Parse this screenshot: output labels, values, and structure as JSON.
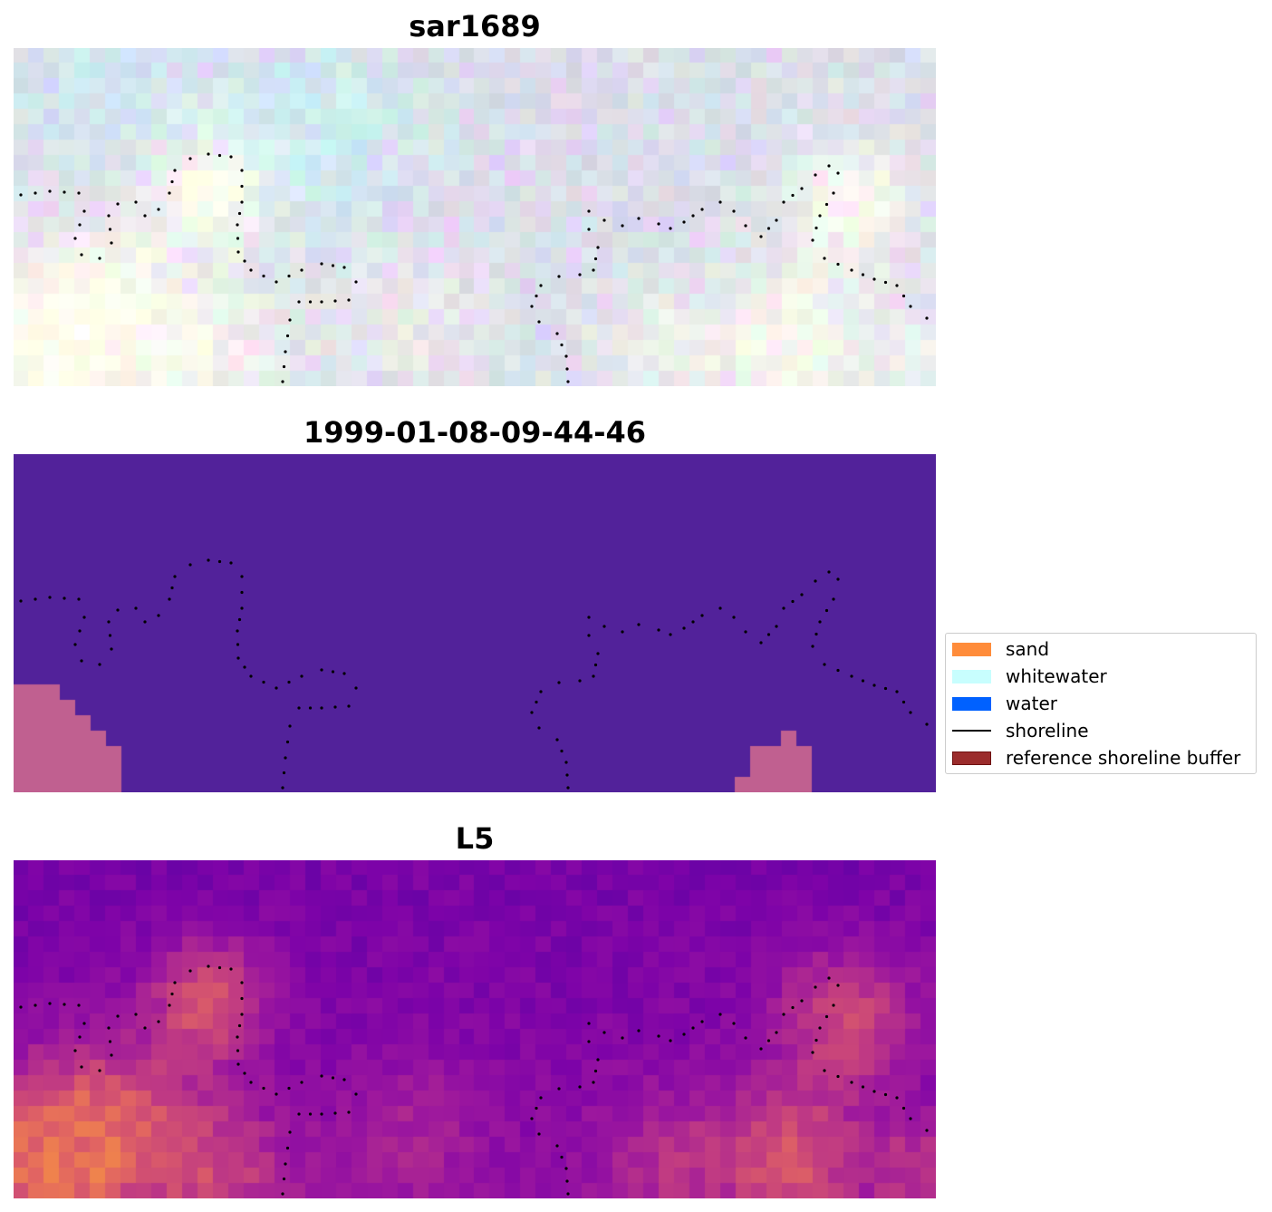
{
  "chart_data": [
    {
      "type": "heatmap",
      "title": "sar1689",
      "grid": false,
      "axes": "off",
      "colormap": "rgb-composite",
      "overlay": {
        "name": "shoreline",
        "style": "dotted",
        "color": "#000000"
      }
    },
    {
      "type": "heatmap",
      "title": "1999-01-08-09-44-46",
      "grid": false,
      "axes": "off",
      "colormap": "classification",
      "colors": {
        "background": "#52229a",
        "patch": "#c06090"
      },
      "overlay": {
        "name": "shoreline",
        "style": "dotted",
        "color": "#000000"
      }
    },
    {
      "type": "heatmap",
      "title": "L5",
      "grid": false,
      "axes": "off",
      "colormap": "plasma",
      "overlay": {
        "name": "shoreline",
        "style": "dotted",
        "color": "#000000"
      }
    }
  ],
  "legend": {
    "placement": "center-right",
    "items": [
      {
        "label": "sand",
        "color": "#ff8c3a",
        "kind": "patch"
      },
      {
        "label": "whitewater",
        "color": "#c8fefe",
        "kind": "patch"
      },
      {
        "label": "water",
        "color": "#0061ff",
        "kind": "patch"
      },
      {
        "label": "shoreline",
        "color": "#000000",
        "kind": "line"
      },
      {
        "label": "reference shoreline buffer",
        "color": "#9b2c2c",
        "edge": "#6e1010",
        "kind": "patch"
      }
    ]
  }
}
